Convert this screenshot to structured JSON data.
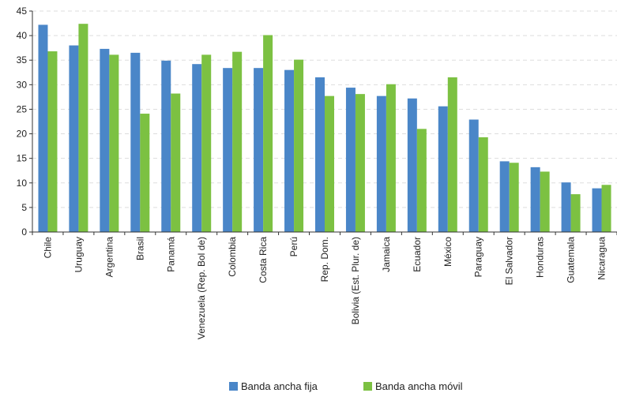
{
  "chart_data": {
    "type": "bar",
    "categories": [
      "Chile",
      "Uruguay",
      "Argentina",
      "Brasil",
      "Panamá",
      "Venezuela (Rep. Bol de)",
      "Colombia",
      "Costa Rica",
      "Perú",
      "Rep. Dom.",
      "Bolivia (Est. Plur. de)",
      "Jamaica",
      "Ecuador",
      "México",
      "Paraguay",
      "El Salvador",
      "Honduras",
      "Guatemala",
      "Nicaragua"
    ],
    "series": [
      {
        "name": "Banda ancha fija",
        "color": "#4a86c8",
        "values": [
          42.2,
          38.0,
          37.3,
          36.5,
          34.9,
          34.2,
          33.4,
          33.4,
          33.0,
          31.5,
          29.4,
          27.7,
          27.2,
          25.6,
          22.9,
          14.4,
          13.2,
          10.1,
          8.9
        ]
      },
      {
        "name": "Banda ancha móvil",
        "color": "#7cc142",
        "values": [
          36.8,
          42.4,
          36.1,
          24.1,
          28.2,
          36.1,
          36.7,
          40.1,
          35.1,
          27.7,
          28.1,
          30.1,
          21.0,
          31.5,
          19.3,
          14.1,
          12.3,
          7.7,
          9.6
        ]
      }
    ],
    "yticks": [
      "0",
      "5",
      "10",
      "15",
      "20",
      "25",
      "30",
      "35",
      "40",
      "45"
    ],
    "ylim": [
      0,
      45
    ],
    "grid": true,
    "legend_position": "bottom-center"
  }
}
